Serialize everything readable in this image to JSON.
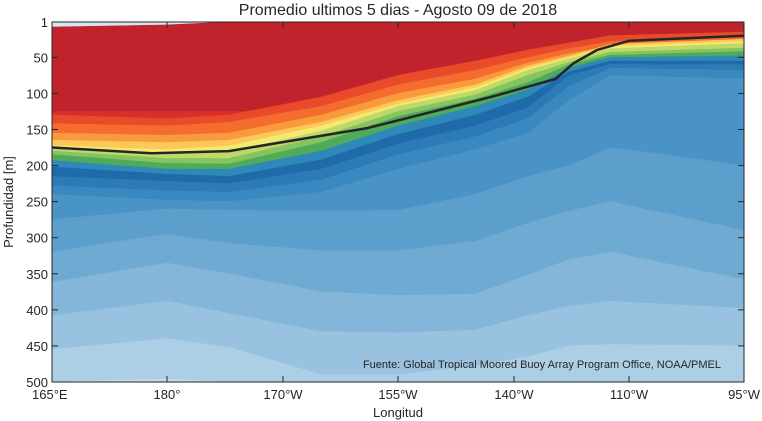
{
  "chart_data": {
    "type": "contour",
    "title": "Promedio ultimos 5 dias - Agosto 09 de 2018",
    "xlabel": "Longitud",
    "ylabel": "Profundidad [m]",
    "annotation": "Fuente: Global Tropical Moored Buoy Array Program Office, NOAA/PMEL",
    "xlim": [
      165,
      255
    ],
    "ylim": [
      500,
      1
    ],
    "x_tick_values": [
      165,
      180,
      195,
      210,
      225,
      250,
      255
    ],
    "x_tick_labels": [
      "165°E",
      "180°",
      "170°W",
      "155°W",
      "140°W",
      "110°W",
      "95°W"
    ],
    "y_tick_values": [
      1,
      50,
      100,
      150,
      200,
      250,
      300,
      350,
      400,
      450,
      500
    ],
    "y_tick_labels": [
      "1",
      "50",
      "100",
      "150",
      "200",
      "250",
      "300",
      "350",
      "400",
      "450",
      "500"
    ],
    "highlight_line": {
      "color": "#262626",
      "x": [
        165,
        178,
        188,
        206,
        222,
        234,
        238,
        243,
        250,
        255
      ],
      "depth": [
        175,
        183,
        180,
        148,
        105,
        80,
        58,
        40,
        27,
        20
      ]
    },
    "contour_boundaries": [
      {
        "depth": [
          8,
          5,
          1,
          1,
          1,
          1,
          1,
          1,
          1,
          1
        ],
        "color": "#c0232b"
      },
      {
        "depth": [
          125,
          125,
          125,
          125,
          120,
          105,
          70,
          50,
          40,
          35
        ],
        "color": "#d7302a"
      },
      {
        "depth": [
          130,
          135,
          130,
          105,
          75,
          55,
          40,
          30,
          20,
          15
        ],
        "color": "#e84a2a"
      },
      {
        "depth": [
          142,
          145,
          140,
          118,
          88,
          68,
          50,
          38,
          28,
          22
        ],
        "color": "#f46d2e"
      },
      {
        "depth": [
          155,
          158,
          155,
          130,
          100,
          80,
          58,
          45,
          35,
          28
        ],
        "color": "#f99b3c"
      },
      {
        "depth": [
          165,
          168,
          165,
          140,
          110,
          88,
          62,
          48,
          32,
          25
        ],
        "color": "#fdc85a"
      },
      {
        "depth": [
          172,
          178,
          173,
          145,
          115,
          92,
          65,
          50,
          35,
          28
        ],
        "color": "#f3ea70"
      },
      {
        "depth": [
          176,
          184,
          182,
          152,
          118,
          96,
          68,
          52,
          38,
          31
        ],
        "color": "#bfd86a"
      },
      {
        "depth": [
          180,
          190,
          190,
          160,
          125,
          102,
          75,
          57,
          43,
          37
        ],
        "color": "#86c45f"
      },
      {
        "depth": [
          185,
          197,
          198,
          168,
          132,
          108,
          85,
          60,
          47,
          42
        ],
        "color": "#4faa59"
      },
      {
        "depth": [
          193,
          205,
          205,
          180,
          145,
          118,
          95,
          65,
          50,
          48
        ],
        "color": "#2f89b8"
      },
      {
        "depth": [
          202,
          212,
          215,
          192,
          157,
          130,
          105,
          70,
          55,
          55
        ],
        "color": "#1f6aaa"
      },
      {
        "depth": [
          215,
          222,
          225,
          205,
          170,
          145,
          120,
          75,
          60,
          60
        ],
        "color": "#2c7bb6"
      },
      {
        "depth": [
          228,
          235,
          237,
          220,
          185,
          160,
          135,
          90,
          65,
          68
        ],
        "color": "#3a88c0"
      },
      {
        "depth": [
          240,
          248,
          250,
          237,
          205,
          178,
          155,
          110,
          75,
          80
        ],
        "color": "#4a93c6"
      },
      {
        "depth": [
          275,
          260,
          262,
          263,
          262,
          240,
          215,
          200,
          175,
          200
        ],
        "color": "#5d9fcc"
      },
      {
        "depth": [
          320,
          295,
          308,
          318,
          318,
          305,
          280,
          263,
          250,
          290
        ],
        "color": "#6faad2"
      },
      {
        "depth": [
          362,
          335,
          350,
          375,
          380,
          378,
          352,
          330,
          320,
          358
        ],
        "color": "#84b6d9"
      },
      {
        "depth": [
          408,
          388,
          405,
          430,
          432,
          428,
          408,
          395,
          388,
          398
        ],
        "color": "#98c2df"
      },
      {
        "depth": [
          455,
          440,
          452,
          490,
          490,
          478,
          465,
          450,
          448,
          450
        ],
        "color": "#adcfe6"
      },
      {
        "depth": [
          500,
          496,
          500,
          500,
          500,
          500,
          500,
          500,
          500,
          500
        ],
        "color": "#c3dcec"
      }
    ],
    "contour_x": [
      165,
      180,
      188,
      200,
      210,
      220,
      228,
      237,
      246,
      255
    ],
    "background_color": "#d6e6f2",
    "grid": false
  }
}
